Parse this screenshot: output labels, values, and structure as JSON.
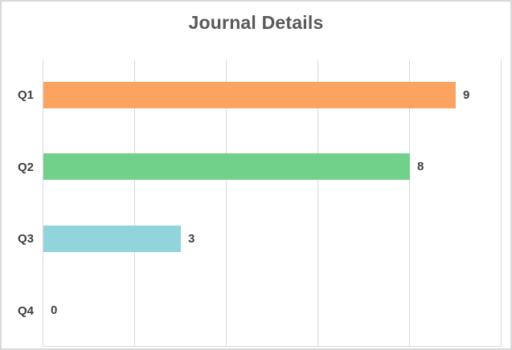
{
  "chart_data": {
    "type": "bar",
    "orientation": "horizontal",
    "title": "Journal Details",
    "categories": [
      "Q1",
      "Q2",
      "Q3",
      "Q4"
    ],
    "values": [
      9,
      8,
      3,
      0
    ],
    "data_labels": [
      "9",
      "8",
      "3",
      "0"
    ],
    "bar_colors": [
      "#FCA35F",
      "#71D18B",
      "#92D4DC",
      null
    ],
    "xlabel": "",
    "ylabel": "",
    "xlim": [
      0,
      10
    ],
    "x_major_unit": 2,
    "gridlines": "vertical-on",
    "legend": "none"
  },
  "colors": {
    "title_text": "#595959",
    "label_text": "#404040",
    "gridline": "#D9D9D9",
    "chart_border": "#D9D9D9",
    "background": "#FFFFFF"
  }
}
